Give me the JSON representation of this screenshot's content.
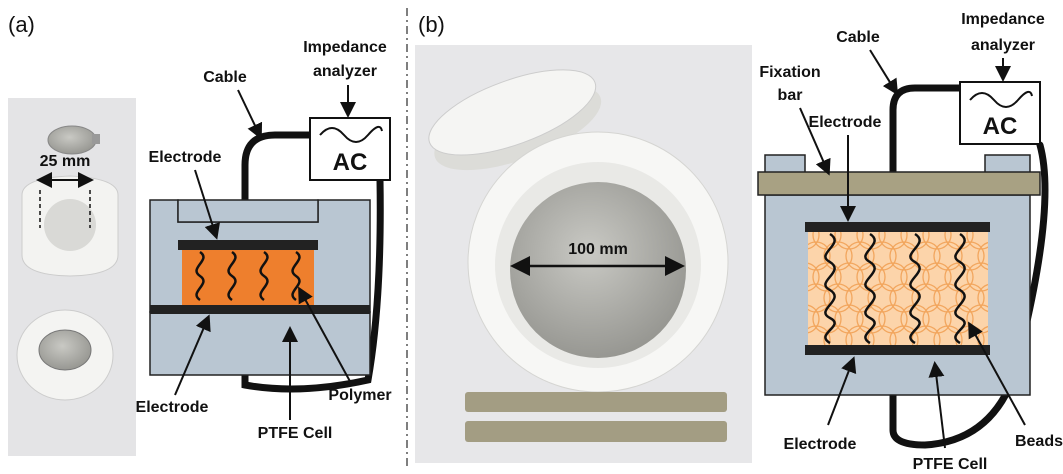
{
  "panel_a": {
    "label": "(a)",
    "photo_dimension": "25 mm",
    "labels": {
      "impedance_analyzer": [
        "Impedance",
        "analyzer"
      ],
      "cable": "Cable",
      "ac": "AC",
      "electrode_top": "Electrode",
      "electrode_bottom": "Electrode",
      "polymer": "Polymer",
      "ptfe_cell": "PTFE Cell"
    }
  },
  "panel_b": {
    "label": "(b)",
    "photo_dimension": "100 mm",
    "labels": {
      "impedance_analyzer": [
        "Impedance",
        "analyzer"
      ],
      "cable": "Cable",
      "ac": "AC",
      "fixation_bar": [
        "Fixation",
        "bar"
      ],
      "electrode_top": "Electrode",
      "electrode_bottom": "Electrode",
      "beads": "Beads",
      "ptfe_cell": "PTFE Cell"
    }
  }
}
